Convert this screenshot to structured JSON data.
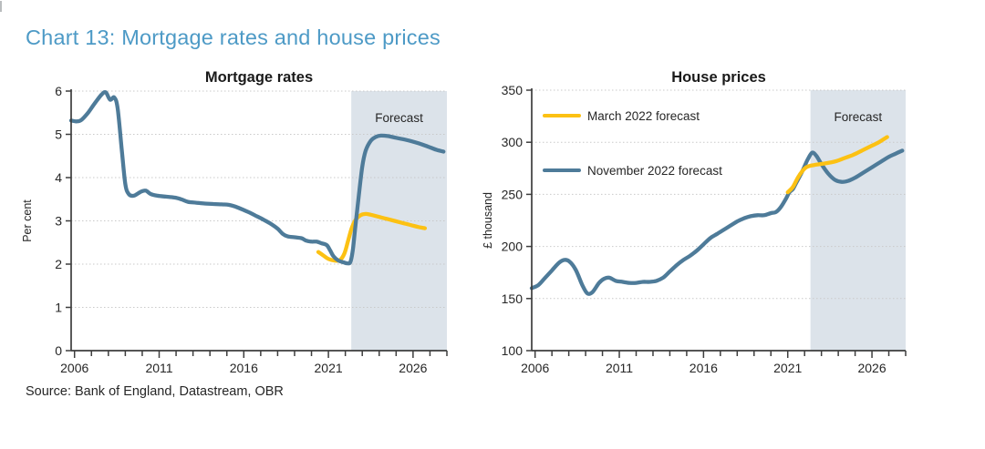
{
  "page": {
    "title": "Chart 13: Mortgage rates and house prices",
    "source": "Source: Bank of England, Datastream, OBR"
  },
  "colors": {
    "title_accent": "#4D9AC6",
    "march_forecast": "#FCC113",
    "november_forecast": "#4E7B99",
    "forecast_band": "#DCE3EA",
    "gridline": "#C9C9C9",
    "axis": "#3D3D3D",
    "text": "#262626"
  },
  "chart_data": [
    {
      "type": "line",
      "title": "Mortgage rates",
      "ylabel": "Per cent",
      "ylim": [
        0,
        6
      ],
      "yticks": [
        0,
        1,
        2,
        3,
        4,
        5,
        6
      ],
      "xlim": [
        2005.8,
        2028.0
      ],
      "xticks_major": [
        2006,
        2011,
        2016,
        2021,
        2026
      ],
      "xtick_minor_from": 2006,
      "xtick_minor_to": 2028,
      "grid": "dotted",
      "forecast_start": 2022.35,
      "forecast_label": "Forecast",
      "series": [
        {
          "name": "March 2022 forecast",
          "color": "#FCC113",
          "points": [
            [
              2020.4,
              2.28
            ],
            [
              2020.7,
              2.2
            ],
            [
              2021.0,
              2.12
            ],
            [
              2021.4,
              2.08
            ],
            [
              2021.7,
              2.1
            ],
            [
              2021.95,
              2.25
            ],
            [
              2022.15,
              2.52
            ],
            [
              2022.35,
              2.8
            ],
            [
              2022.6,
              3.02
            ],
            [
              2022.9,
              3.13
            ],
            [
              2023.2,
              3.16
            ],
            [
              2023.5,
              3.14
            ],
            [
              2023.9,
              3.1
            ],
            [
              2024.4,
              3.05
            ],
            [
              2024.9,
              3.0
            ],
            [
              2025.4,
              2.95
            ],
            [
              2025.9,
              2.9
            ],
            [
              2026.3,
              2.86
            ],
            [
              2026.7,
              2.83
            ]
          ]
        },
        {
          "name": "November 2022 forecast",
          "color": "#4E7B99",
          "points": [
            [
              2005.8,
              5.32
            ],
            [
              2006.1,
              5.3
            ],
            [
              2006.4,
              5.33
            ],
            [
              2006.8,
              5.5
            ],
            [
              2007.2,
              5.72
            ],
            [
              2007.6,
              5.92
            ],
            [
              2007.85,
              5.97
            ],
            [
              2008.1,
              5.8
            ],
            [
              2008.35,
              5.85
            ],
            [
              2008.55,
              5.6
            ],
            [
              2008.8,
              4.6
            ],
            [
              2009.0,
              3.85
            ],
            [
              2009.2,
              3.62
            ],
            [
              2009.5,
              3.58
            ],
            [
              2009.9,
              3.67
            ],
            [
              2010.2,
              3.7
            ],
            [
              2010.5,
              3.62
            ],
            [
              2010.9,
              3.58
            ],
            [
              2011.4,
              3.56
            ],
            [
              2011.9,
              3.54
            ],
            [
              2012.3,
              3.5
            ],
            [
              2012.7,
              3.44
            ],
            [
              2013.2,
              3.42
            ],
            [
              2013.7,
              3.4
            ],
            [
              2014.2,
              3.39
            ],
            [
              2014.7,
              3.38
            ],
            [
              2015.1,
              3.37
            ],
            [
              2015.5,
              3.33
            ],
            [
              2016.0,
              3.25
            ],
            [
              2016.4,
              3.18
            ],
            [
              2016.8,
              3.1
            ],
            [
              2017.2,
              3.02
            ],
            [
              2017.6,
              2.93
            ],
            [
              2018.0,
              2.82
            ],
            [
              2018.3,
              2.7
            ],
            [
              2018.6,
              2.64
            ],
            [
              2019.0,
              2.62
            ],
            [
              2019.4,
              2.6
            ],
            [
              2019.7,
              2.54
            ],
            [
              2020.0,
              2.52
            ],
            [
              2020.3,
              2.52
            ],
            [
              2020.6,
              2.48
            ],
            [
              2020.9,
              2.44
            ],
            [
              2021.1,
              2.32
            ],
            [
              2021.3,
              2.18
            ],
            [
              2021.6,
              2.08
            ],
            [
              2021.9,
              2.04
            ],
            [
              2022.1,
              2.02
            ],
            [
              2022.3,
              2.05
            ],
            [
              2022.45,
              2.35
            ],
            [
              2022.6,
              2.9
            ],
            [
              2022.8,
              3.6
            ],
            [
              2023.0,
              4.25
            ],
            [
              2023.2,
              4.62
            ],
            [
              2023.5,
              4.85
            ],
            [
              2023.8,
              4.94
            ],
            [
              2024.1,
              4.97
            ],
            [
              2024.5,
              4.96
            ],
            [
              2025.0,
              4.92
            ],
            [
              2025.5,
              4.88
            ],
            [
              2026.0,
              4.83
            ],
            [
              2026.5,
              4.77
            ],
            [
              2027.0,
              4.7
            ],
            [
              2027.4,
              4.64
            ],
            [
              2027.8,
              4.6
            ]
          ]
        }
      ]
    },
    {
      "type": "line",
      "title": "House prices",
      "ylabel": "£ thousand",
      "ylim": [
        100,
        350
      ],
      "yticks": [
        100,
        150,
        200,
        250,
        300,
        350
      ],
      "xlim": [
        2005.8,
        2028.0
      ],
      "xticks_major": [
        2006,
        2011,
        2016,
        2021,
        2026
      ],
      "xtick_minor_from": 2006,
      "xtick_minor_to": 2028,
      "grid": "dotted",
      "forecast_start": 2022.35,
      "forecast_label": "Forecast",
      "legend": [
        {
          "label": "March 2022 forecast",
          "color": "#FCC113"
        },
        {
          "label": "November 2022 forecast",
          "color": "#4E7B99"
        }
      ],
      "series": [
        {
          "name": "November 2022 forecast",
          "color": "#4E7B99",
          "points": [
            [
              2005.8,
              160
            ],
            [
              2006.2,
              163
            ],
            [
              2006.6,
              170
            ],
            [
              2007.0,
              177
            ],
            [
              2007.4,
              184
            ],
            [
              2007.7,
              187
            ],
            [
              2008.0,
              186
            ],
            [
              2008.4,
              178
            ],
            [
              2008.8,
              163
            ],
            [
              2009.1,
              155
            ],
            [
              2009.4,
              156
            ],
            [
              2009.8,
              165
            ],
            [
              2010.1,
              169
            ],
            [
              2010.4,
              170
            ],
            [
              2010.8,
              167
            ],
            [
              2011.2,
              166
            ],
            [
              2011.6,
              165
            ],
            [
              2012.0,
              165
            ],
            [
              2012.4,
              166
            ],
            [
              2012.8,
              166
            ],
            [
              2013.2,
              167
            ],
            [
              2013.6,
              170
            ],
            [
              2014.0,
              176
            ],
            [
              2014.4,
              182
            ],
            [
              2014.8,
              187
            ],
            [
              2015.2,
              191
            ],
            [
              2015.6,
              196
            ],
            [
              2016.0,
              202
            ],
            [
              2016.4,
              208
            ],
            [
              2016.8,
              212
            ],
            [
              2017.2,
              216
            ],
            [
              2017.6,
              220
            ],
            [
              2018.0,
              224
            ],
            [
              2018.4,
              227
            ],
            [
              2018.8,
              229
            ],
            [
              2019.2,
              230
            ],
            [
              2019.6,
              230
            ],
            [
              2020.0,
              232
            ],
            [
              2020.3,
              233
            ],
            [
              2020.6,
              238
            ],
            [
              2020.9,
              246
            ],
            [
              2021.1,
              252
            ],
            [
              2021.3,
              255
            ],
            [
              2021.5,
              261
            ],
            [
              2021.8,
              270
            ],
            [
              2022.0,
              277
            ],
            [
              2022.2,
              284
            ],
            [
              2022.45,
              290
            ],
            [
              2022.7,
              287
            ],
            [
              2023.0,
              279
            ],
            [
              2023.4,
              270
            ],
            [
              2023.8,
              264
            ],
            [
              2024.2,
              262
            ],
            [
              2024.6,
              263
            ],
            [
              2025.0,
              266
            ],
            [
              2025.5,
              271
            ],
            [
              2026.0,
              276
            ],
            [
              2026.5,
              281
            ],
            [
              2027.0,
              286
            ],
            [
              2027.4,
              289
            ],
            [
              2027.8,
              292
            ]
          ]
        },
        {
          "name": "March 2022 forecast",
          "color": "#FCC113",
          "points": [
            [
              2021.0,
              252
            ],
            [
              2021.3,
              257
            ],
            [
              2021.6,
              266
            ],
            [
              2021.9,
              273
            ],
            [
              2022.1,
              276
            ],
            [
              2022.35,
              277.5
            ],
            [
              2022.7,
              278.5
            ],
            [
              2023.1,
              279.5
            ],
            [
              2023.5,
              280.5
            ],
            [
              2023.9,
              282
            ],
            [
              2024.4,
              285
            ],
            [
              2024.9,
              288
            ],
            [
              2025.4,
              292
            ],
            [
              2025.9,
              296
            ],
            [
              2026.4,
              300
            ],
            [
              2026.9,
              305
            ]
          ]
        }
      ]
    }
  ]
}
